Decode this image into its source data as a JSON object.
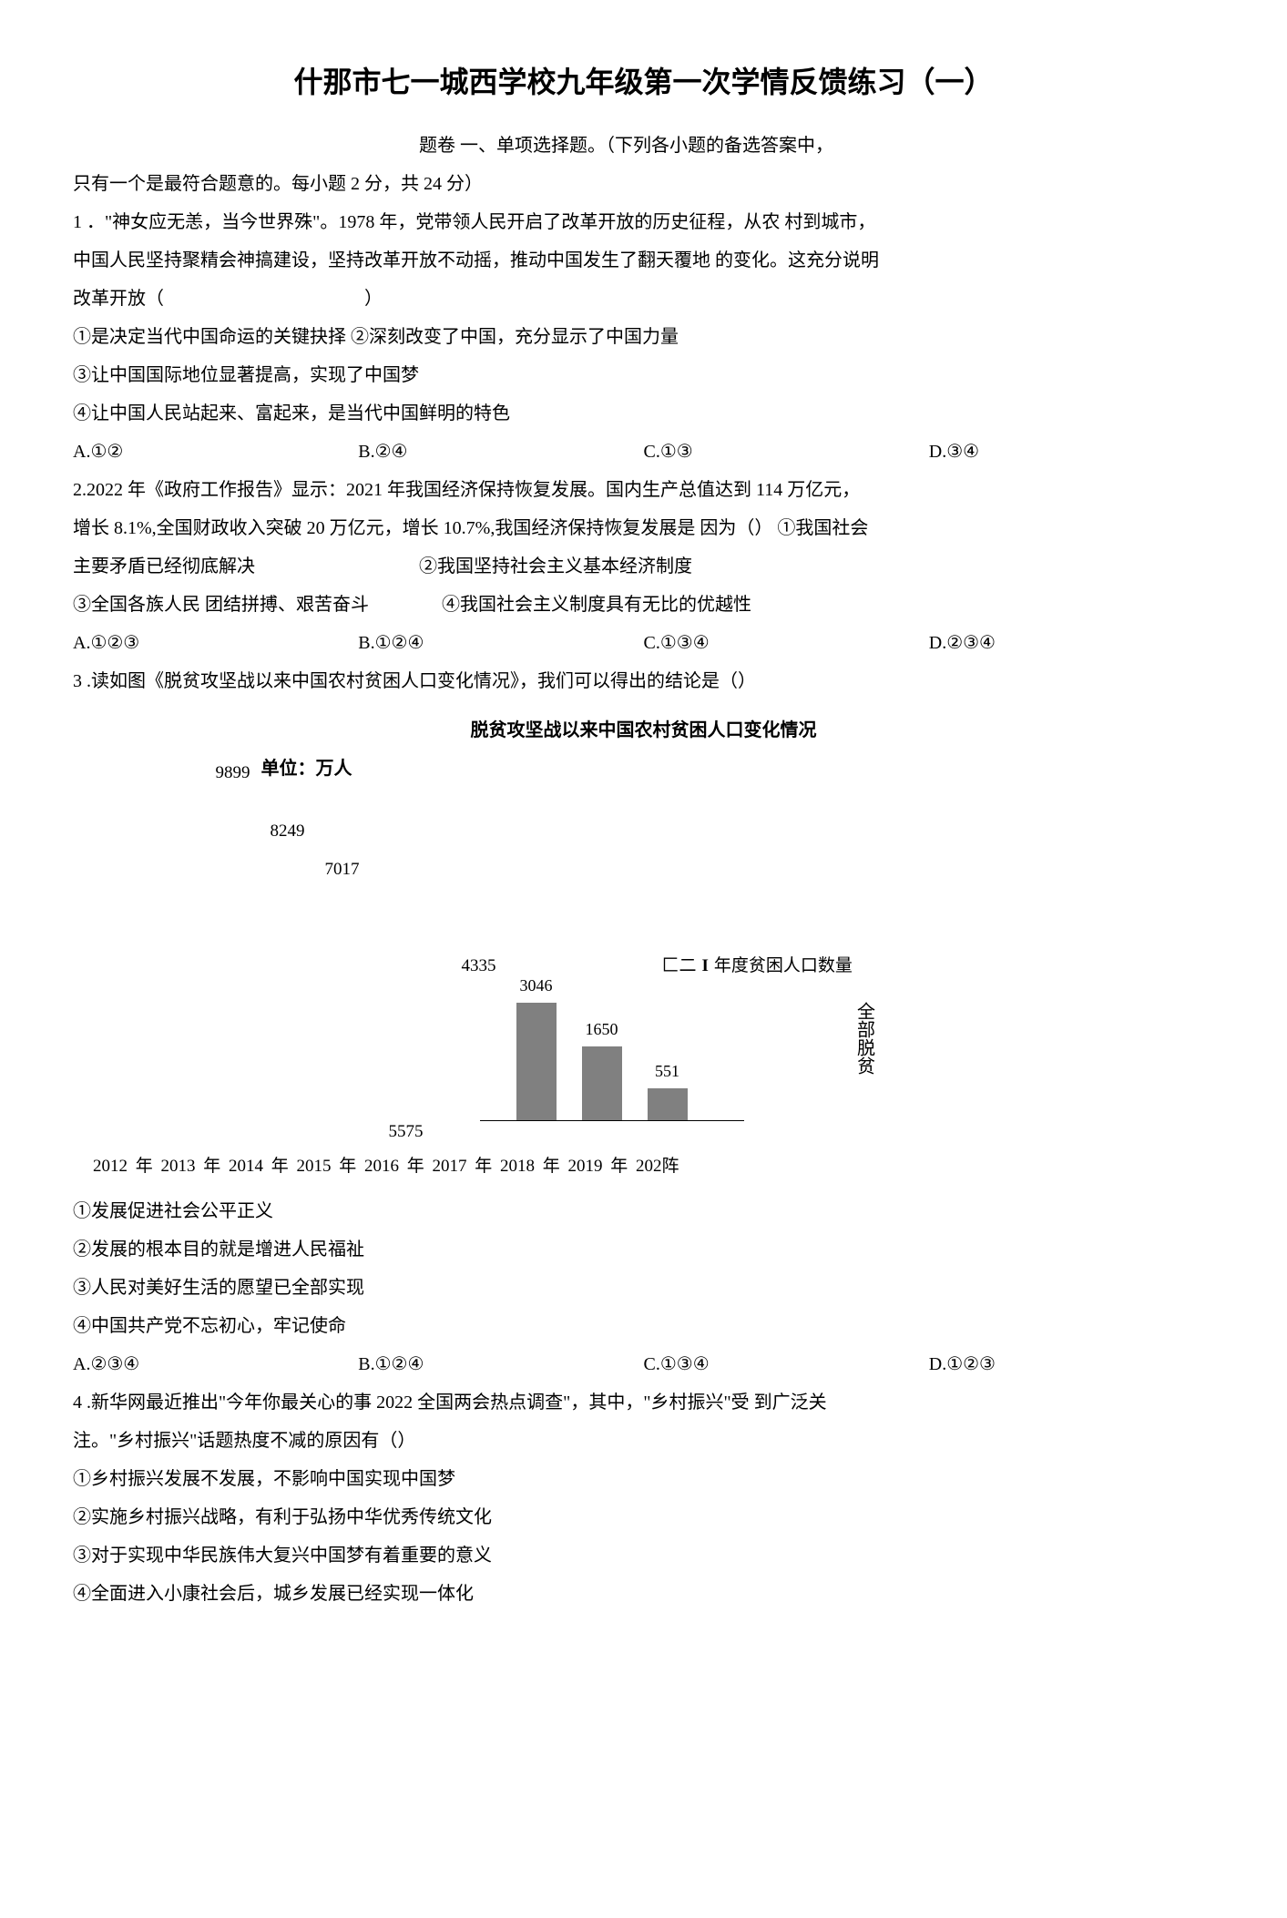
{
  "title": "什那市七一城西学校九年级第一次学情反馈练习（一）",
  "instructions_part1": "题卷 一、单项选择题。（下列各小题的备选答案中，",
  "instructions_part2": "只有一个是最符合题意的。每小题 2 分，共 24 分）",
  "q1": {
    "stem1": "1 ．\"神女应无恙，当今世界殊\"。1978 年，党带领人民开启了改革开放的历史征程，从农 村到城市，",
    "stem2": "中国人民坚持聚精会神搞建设，坚持改革开放不动摇，推动中国发生了翻天覆地 的变化。这充分说明",
    "stem3": "改革开放（　　　　　　　　　　　）",
    "s1": "①是决定当代中国命运的关键抉择 ②深刻改变了中国，充分显示了中国力量",
    "s2": "③让中国国际地位显著提高，实现了中国梦",
    "s3": "④让中国人民站起来、富起来，是当代中国鲜明的特色",
    "a": "A.①②",
    "b": "B.②④",
    "c": "C.①③",
    "d": "D.③④"
  },
  "q2": {
    "stem1": "2.2022 年《政府工作报告》显示：2021 年我国经济保持恢复发展。国内生产总值达到 114 万亿元，",
    "stem2": "增长 8.1%,全国财政收入突破 20 万亿元，增长 10.7%,我国经济保持恢复发展是 因为（） ①我国社会",
    "stem3": "主要矛盾已经彻底解决　　　　　　　　　②我国坚持社会主义基本经济制度",
    "stem4": "③全国各族人民 团结拼搏、艰苦奋斗　　　　④我国社会主义制度具有无比的优越性",
    "a": "A.①②③",
    "b": "B.①②④",
    "c": "C.①③④",
    "d": "D.②③④"
  },
  "q3": {
    "stem": "3 .读如图《脱贫攻坚战以来中国农村贫困人口变化情况》，我们可以得出的结论是（）",
    "s1": "①发展促进社会公平正义",
    "s2": "②发展的根本目的就是增进人民福祉",
    "s3": "③人民对美好生活的愿望已全部实现",
    "s4": "④中国共产党不忘初心，牢记使命",
    "a": "A.②③④",
    "b": "B.①②④",
    "c": "C.①③④",
    "d": "D.①②③"
  },
  "q4": {
    "stem1": "4 .新华网最近推出\"今年你最关心的事 2022 全国两会热点调查\"，其中，\"乡村振兴\"受 到广泛关",
    "stem2": "注。\"乡村振兴\"话题热度不减的原因有（）",
    "s1": "①乡村振兴发展不发展，不影响中国实现中国梦",
    "s2": "②实施乡村振兴战略，有利于弘扬中华优秀传统文化",
    "s3": "③对于实现中华民族伟大复兴中国梦有着重要的意义",
    "s4": "④全面进入小康社会后，城乡发展已经实现一体化"
  },
  "chart": {
    "title": "脱贫攻坚战以来中国农村贫困人口变化情况",
    "unit": "单位：万人",
    "legend_marker": "匚二",
    "legend_i": "I",
    "legend_text": "年度贫困人口数量",
    "side_label": "全部脱贫",
    "values": {
      "v9899": "9899",
      "v8249": "8249",
      "v7017": "7017",
      "v4335": "4335",
      "v3046": "3046",
      "v1650": "1650",
      "v551": "551",
      "v5575": "5575"
    },
    "bar_heights": {
      "b3046": 130,
      "b1650": 82,
      "b551": 36
    },
    "bar_color": "#808080",
    "xaxis": "2012 年 2013 年 2014 年 2015 年 2016 年 2017 年 2018 年 2019 年 202阵"
  }
}
